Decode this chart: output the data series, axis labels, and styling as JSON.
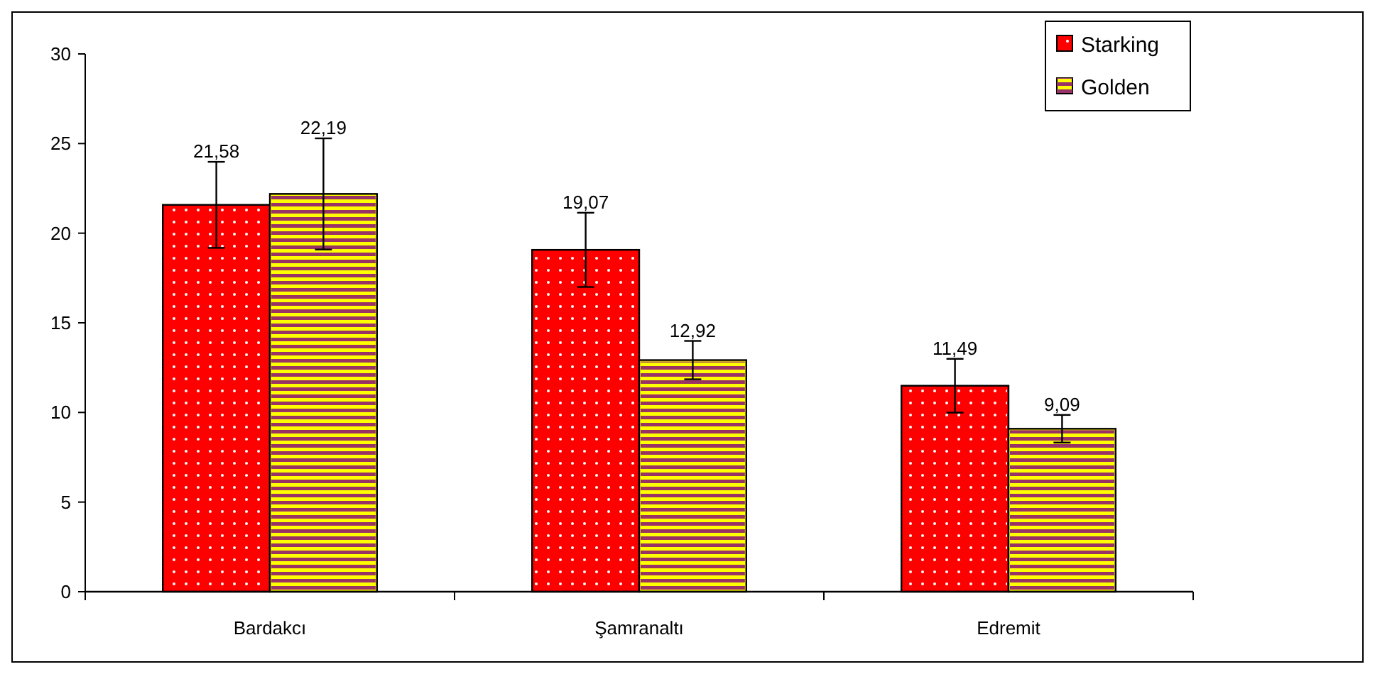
{
  "chart_data": {
    "type": "bar",
    "categories": [
      "Bardakcı",
      "Şamranaltı",
      "Edremit"
    ],
    "series": [
      {
        "name": "Starking",
        "color": "#ff0000",
        "values": [
          21.58,
          19.07,
          11.49
        ],
        "errors": [
          2.4,
          2.07,
          1.5
        ],
        "value_labels": [
          "21,58",
          "19,07",
          "11,49"
        ]
      },
      {
        "name": "Golden",
        "color": "#ffff00",
        "values": [
          22.19,
          12.92,
          9.09
        ],
        "errors": [
          3.1,
          1.07,
          0.77
        ],
        "value_labels": [
          "22,19",
          "12,92",
          "9,09"
        ]
      }
    ],
    "ylim": [
      0,
      30
    ],
    "yticks": [
      0,
      5,
      10,
      15,
      20,
      25,
      30
    ],
    "grid": false,
    "legend": "top right"
  }
}
